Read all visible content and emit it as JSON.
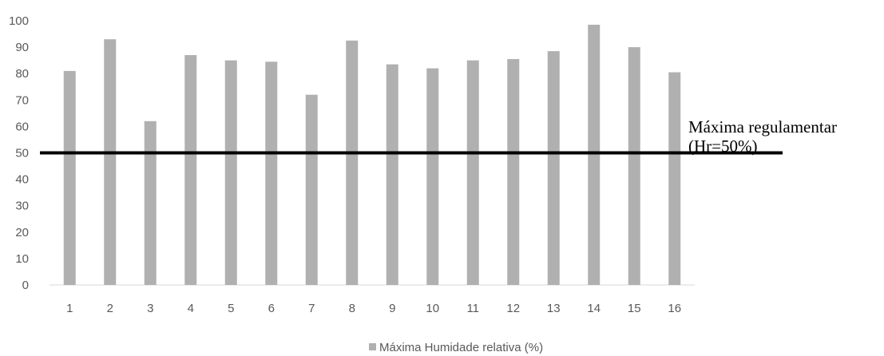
{
  "chart_data": {
    "type": "bar",
    "categories": [
      "1",
      "2",
      "3",
      "4",
      "5",
      "6",
      "7",
      "8",
      "9",
      "10",
      "11",
      "12",
      "13",
      "14",
      "15",
      "16"
    ],
    "series": [
      {
        "name": "Máxima Humidade relativa (%)",
        "values": [
          81,
          93,
          62,
          87,
          85,
          84.5,
          72,
          92.5,
          83.5,
          82,
          85,
          85.5,
          88.5,
          98.5,
          90,
          80.5
        ],
        "color": "#b0b0b0"
      }
    ],
    "ylim": [
      0,
      100
    ],
    "yticks": [
      0,
      10,
      20,
      30,
      40,
      50,
      60,
      70,
      80,
      90,
      100
    ],
    "grid": false,
    "legend_position": "bottom-center",
    "reference_line": {
      "value": 50,
      "color": "#000000",
      "label_line1": "Máxima regulamentar",
      "label_line2": "(Hr=50%)"
    },
    "title": "",
    "xlabel": "",
    "ylabel": ""
  }
}
